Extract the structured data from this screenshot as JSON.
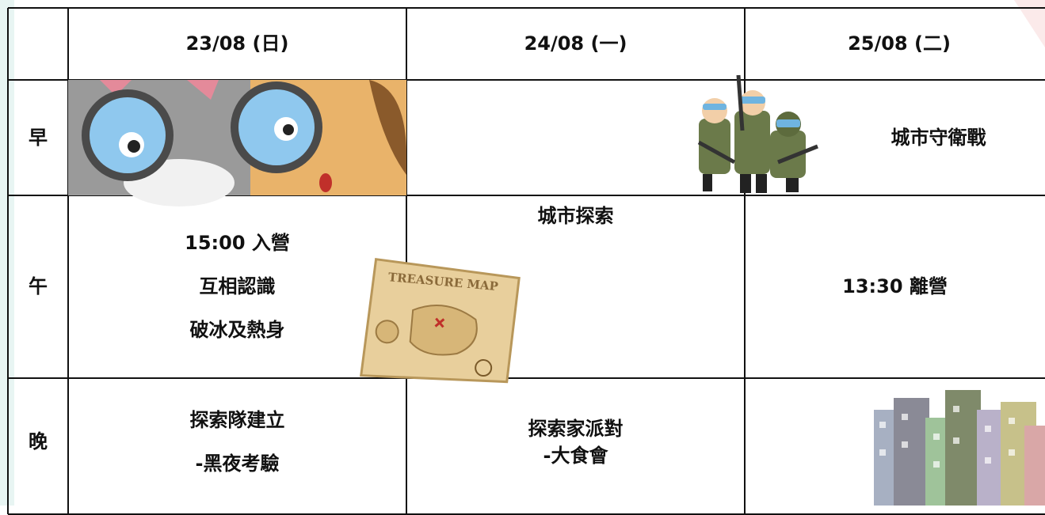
{
  "table": {
    "header": [
      "23/08 (日)",
      "24/08 (一)",
      "25/08 (二)"
    ],
    "rows": [
      {
        "label": "早",
        "cells": [
          [],
          null,
          [
            "城市守衛戰"
          ]
        ]
      },
      {
        "label": "午",
        "cells": [
          [
            "15:00 入營",
            "互相認識",
            "破冰及熱身"
          ],
          [
            "城市探索"
          ],
          [
            "13:30 離營"
          ]
        ]
      },
      {
        "label": "晚",
        "cells": [
          [
            "探索隊建立",
            "-黑夜考驗"
          ],
          [
            "探索家派對",
            "-大食會"
          ],
          []
        ]
      }
    ]
  },
  "images": {
    "treasure_map": "TREASURE MAP"
  }
}
